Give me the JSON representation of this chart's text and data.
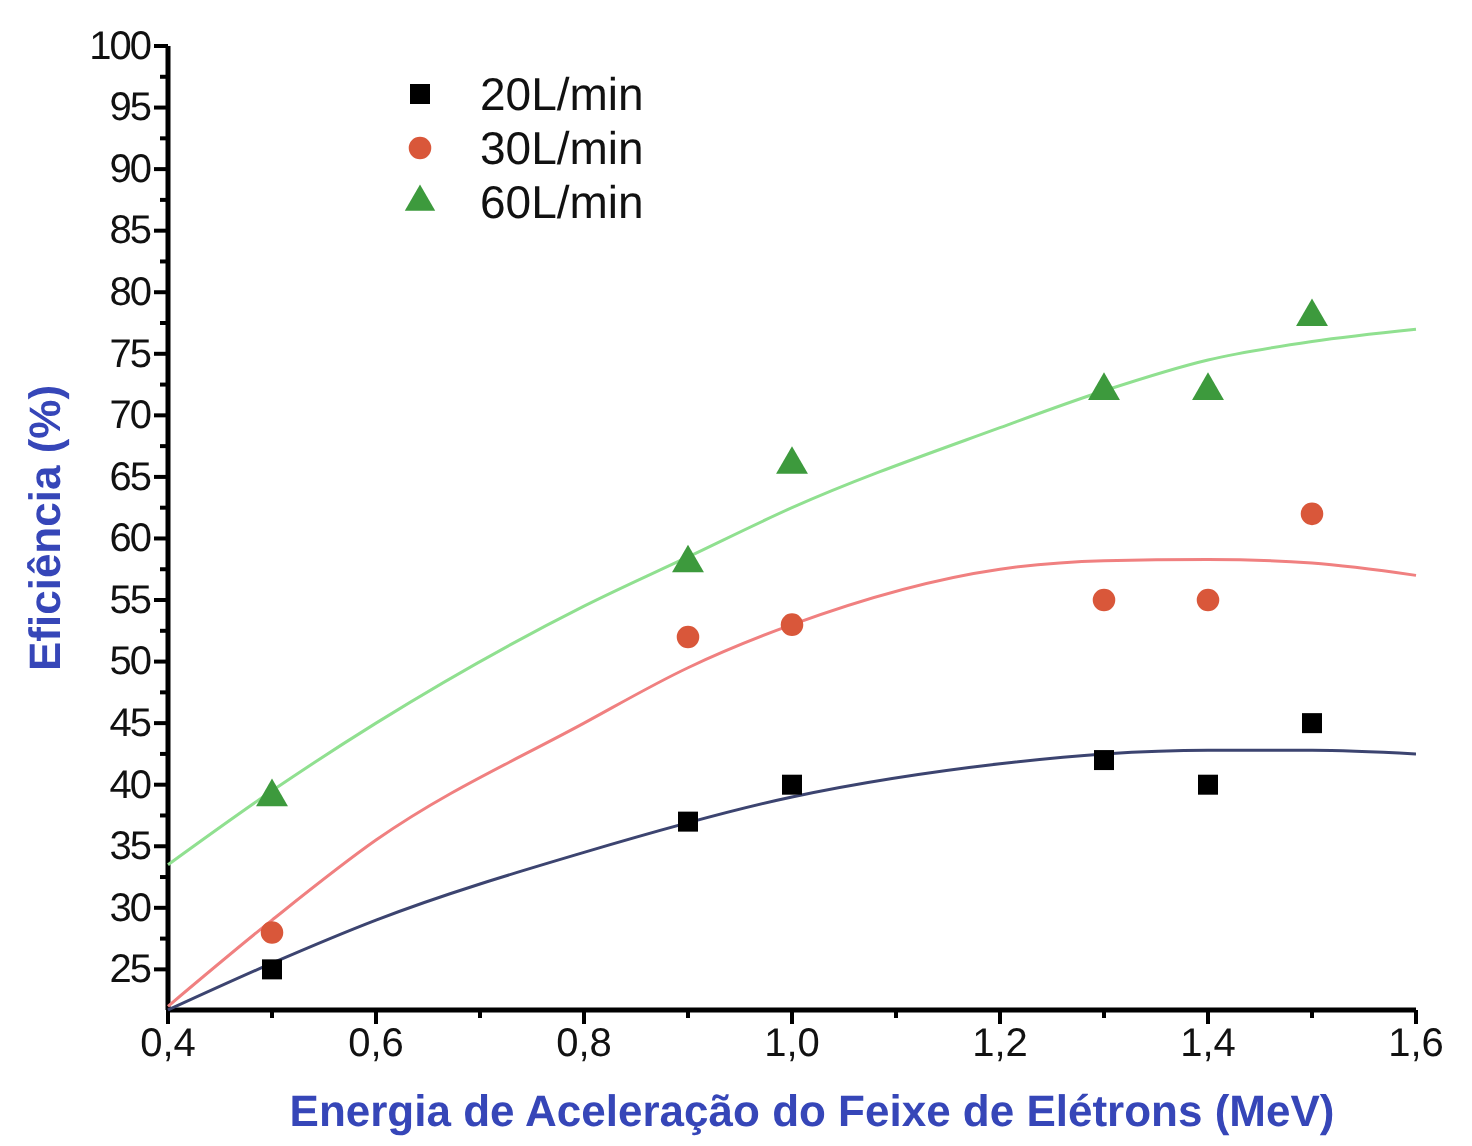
{
  "chart_data": {
    "type": "scatter",
    "xlabel": "Energia de Aceleração do Feixe de Elétrons (MeV)",
    "ylabel": "Eficiência (%)",
    "xlim": [
      0.4,
      1.6
    ],
    "xticks": [
      {
        "value": 0.4,
        "label": "0,4"
      },
      {
        "value": 0.5,
        "label": null
      },
      {
        "value": 0.6,
        "label": "0,6"
      },
      {
        "value": 0.7,
        "label": null
      },
      {
        "value": 0.8,
        "label": "0,8"
      },
      {
        "value": 0.9,
        "label": null
      },
      {
        "value": 1.0,
        "label": "1,0"
      },
      {
        "value": 1.1,
        "label": null
      },
      {
        "value": 1.2,
        "label": "1,2"
      },
      {
        "value": 1.3,
        "label": null
      },
      {
        "value": 1.4,
        "label": "1,4"
      },
      {
        "value": 1.5,
        "label": null
      },
      {
        "value": 1.6,
        "label": "1,6"
      }
    ],
    "ylim": [
      21.7,
      100
    ],
    "yticks": [
      25,
      {
        "value": 27.5,
        "label": null
      },
      30,
      {
        "value": 32.5,
        "label": null
      },
      35,
      {
        "value": 37.5,
        "label": null
      },
      40,
      {
        "value": 42.5,
        "label": null
      },
      45,
      {
        "value": 47.5,
        "label": null
      },
      50,
      {
        "value": 52.5,
        "label": null
      },
      55,
      {
        "value": 57.5,
        "label": null
      },
      60,
      {
        "value": 62.5,
        "label": null
      },
      65,
      {
        "value": 67.5,
        "label": null
      },
      70,
      {
        "value": 72.5,
        "label": null
      },
      75,
      {
        "value": 77.5,
        "label": null
      },
      80,
      {
        "value": 82.5,
        "label": null
      },
      85,
      {
        "value": 87.5,
        "label": null
      },
      90,
      {
        "value": 92.5,
        "label": null
      },
      95,
      {
        "value": 97.5,
        "label": null
      },
      100
    ],
    "x": [
      0.5,
      0.9,
      1.0,
      1.3,
      1.4,
      1.5
    ],
    "legend": "top left",
    "grid": false,
    "series": [
      {
        "name": "20L/min",
        "color": "#000000",
        "marker": "square",
        "values": [
          25,
          37,
          40,
          42,
          40,
          45
        ]
      },
      {
        "name": "30L/min",
        "color": "#d9573a",
        "marker": "circle",
        "values": [
          28,
          52,
          53,
          55,
          55,
          62
        ]
      },
      {
        "name": "60L/min",
        "color": "#3d9a3d",
        "marker": "triangle",
        "values": [
          39,
          58,
          66,
          72,
          72,
          78
        ]
      },
      {
        "type": "line",
        "color": "#3c4470",
        "x": [
          0.4,
          0.5,
          0.6,
          0.8,
          1.0,
          1.2,
          1.3,
          1.4,
          1.5,
          1.6
        ],
        "values": [
          21.7,
          25.5,
          29,
          34.5,
          39,
          41.7,
          42.5,
          42.8,
          42.8,
          42.5
        ]
      },
      {
        "type": "line",
        "color": "#f08080",
        "x": [
          0.4,
          0.5,
          0.6,
          0.8,
          0.9,
          1.0,
          1.2,
          1.3,
          1.4,
          1.5,
          1.6
        ],
        "values": [
          22,
          29,
          35.5,
          45,
          49.5,
          53,
          57.5,
          58.2,
          58.3,
          58,
          57
        ]
      },
      {
        "type": "line",
        "color": "#90e090",
        "x": [
          0.4,
          0.5,
          0.6,
          0.8,
          0.9,
          1.0,
          1.2,
          1.3,
          1.4,
          1.5,
          1.6
        ],
        "values": [
          33.5,
          39.5,
          45,
          54.5,
          58.5,
          62.5,
          69,
          72,
          74.5,
          76,
          77
        ]
      }
    ]
  }
}
